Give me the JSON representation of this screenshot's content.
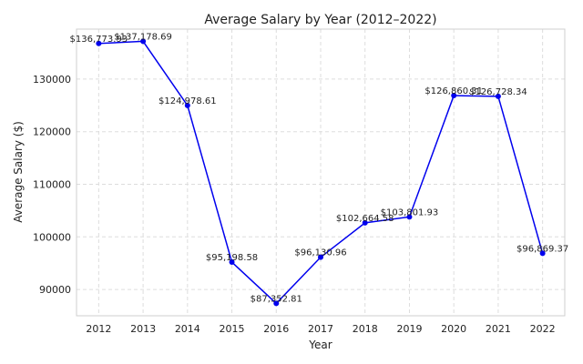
{
  "chart_data": {
    "type": "line",
    "title": "Average Salary by Year (2012–2022)",
    "xlabel": "Year",
    "ylabel": "Average Salary ($)",
    "x": [
      2012,
      2013,
      2014,
      2015,
      2016,
      2017,
      2018,
      2019,
      2020,
      2021,
      2022
    ],
    "values": [
      136773.93,
      137178.69,
      124978.61,
      95198.58,
      87352.81,
      96130.96,
      102664.58,
      103801.93,
      126860.31,
      126728.34,
      96869.37
    ],
    "data_labels": [
      "$136,773.93",
      "$137,178.69",
      "$124,978.61",
      "$95,198.58",
      "$87,352.81",
      "$96,130.96",
      "$102,664.58",
      "$103,801.93",
      "$126,860.31",
      "$126,728.34",
      "$96,869.37"
    ],
    "xlim": [
      2011.5,
      2022.5
    ],
    "ylim": [
      85000,
      139500
    ],
    "yticks": [
      90000,
      100000,
      110000,
      120000,
      130000
    ],
    "ytick_labels": [
      "90000",
      "100000",
      "110000",
      "120000",
      "130000"
    ],
    "xtick_labels": [
      "2012",
      "2013",
      "2014",
      "2015",
      "2016",
      "2017",
      "2018",
      "2019",
      "2020",
      "2021",
      "2022"
    ],
    "grid": true,
    "line_color": "#0000ee",
    "marker_color": "#0000ee"
  }
}
